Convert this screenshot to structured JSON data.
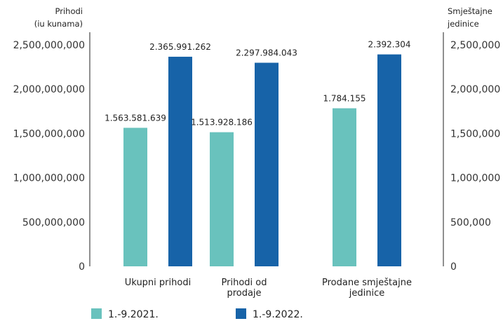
{
  "chart_data": {
    "type": "bar",
    "left_axis": {
      "title_lines": [
        "Prihodi",
        "(iu kunama)"
      ],
      "ylim": [
        0,
        2500000000
      ],
      "ticks": [
        0,
        500000000,
        1000000000,
        1500000000,
        2000000000,
        2500000000
      ],
      "tick_labels": [
        "0",
        "500,000,000",
        "1,000,000,000",
        "1,500,000,000",
        "2,000,000,000",
        "2,500,000,000"
      ]
    },
    "right_axis": {
      "title_lines": [
        "Smještajne",
        "jedinice"
      ],
      "ylim": [
        0,
        2500000
      ],
      "ticks": [
        0,
        500000,
        1000000,
        1500000,
        2000000,
        2500000
      ],
      "tick_labels": [
        "0",
        "500,000",
        "1,000,000",
        "1,500,000",
        "2,000,000",
        "2,500,000"
      ]
    },
    "categories": [
      {
        "lines": [
          "Ukupni prihodi"
        ],
        "axis": "left"
      },
      {
        "lines": [
          "Prihodi od",
          "prodaje"
        ],
        "axis": "left"
      },
      {
        "lines": [
          "Prodane smještajne",
          "jedinice"
        ],
        "axis": "right"
      }
    ],
    "series": [
      {
        "name": "1.-9.2021.",
        "color": "#69c2bd",
        "values": [
          1563581639,
          1513928186,
          1784155
        ],
        "labels": [
          "1.563.581.639",
          "1.513.928.186",
          "1.784.155"
        ]
      },
      {
        "name": "1.-9.2022.",
        "color": "#1763a8",
        "values": [
          2365991262,
          2297984043,
          2392304
        ],
        "labels": [
          "2.365.991.262",
          "2.297.984.043",
          "2.392.304"
        ]
      }
    ],
    "legend_position": "bottom-left",
    "grid": false
  }
}
